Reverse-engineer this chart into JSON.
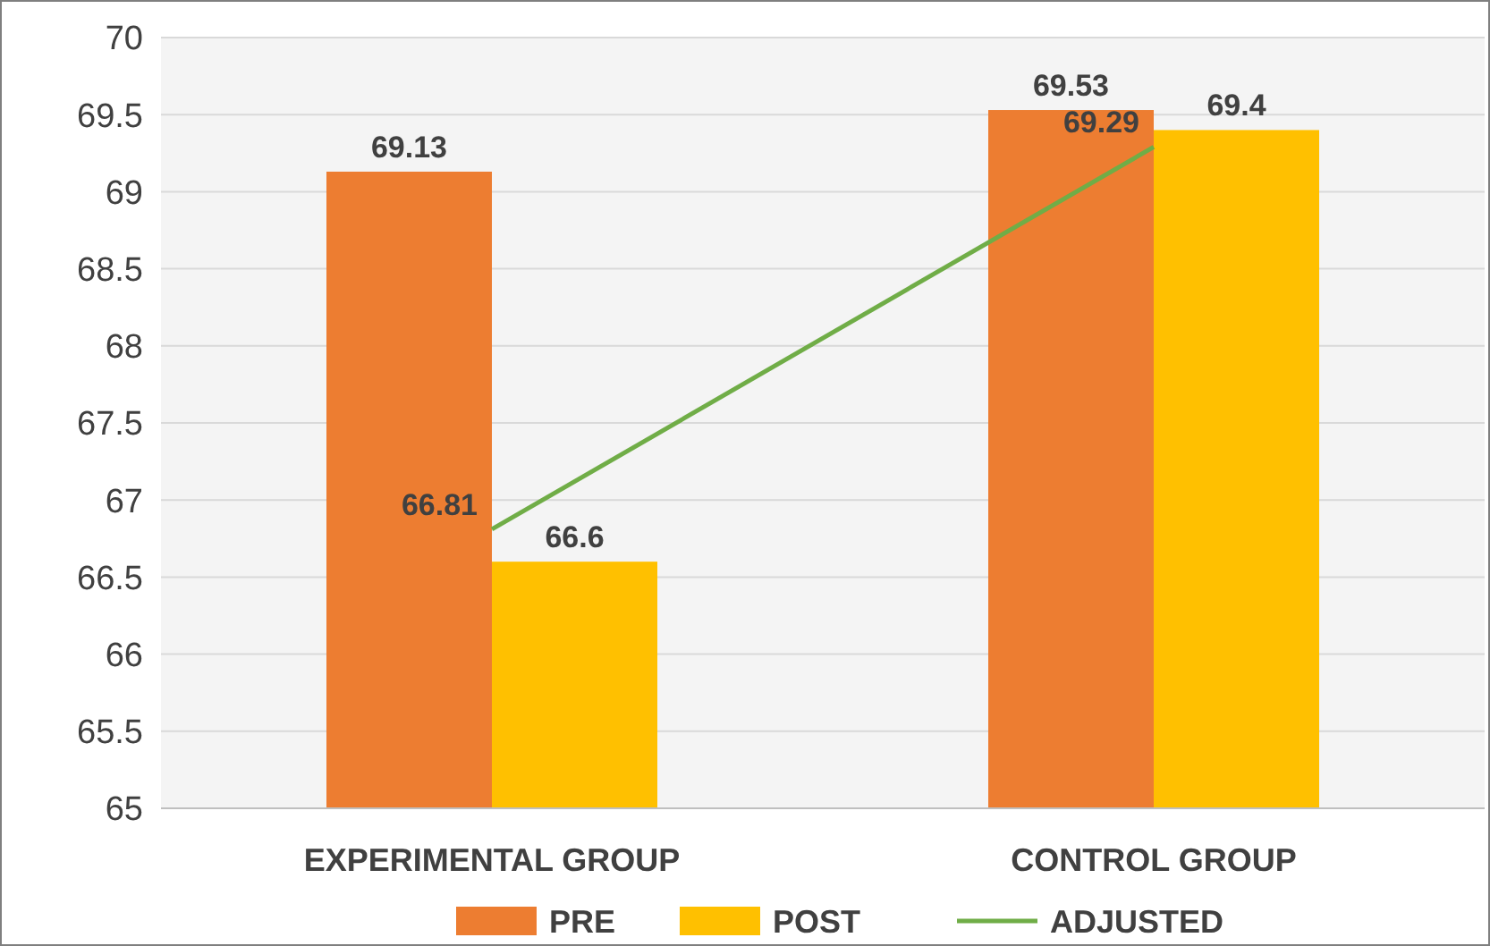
{
  "chart_data": {
    "type": "bar",
    "categories": [
      "EXPERIMENTAL GROUP",
      "CONTROL GROUP"
    ],
    "series": [
      {
        "name": "PRE",
        "color": "#ed7d31",
        "values": [
          69.13,
          69.53
        ]
      },
      {
        "name": "POST",
        "color": "#ffc000",
        "values": [
          66.6,
          69.4
        ]
      },
      {
        "name": "ADJUSTED",
        "type": "line",
        "color": "#70ad47",
        "values": [
          66.81,
          69.29
        ]
      }
    ],
    "ylim": [
      65,
      70
    ],
    "yticks": [
      65,
      65.5,
      66,
      66.5,
      67,
      67.5,
      68,
      68.5,
      69,
      69.5,
      70
    ],
    "grid": "y",
    "legend": "bottom",
    "data_labels": true,
    "marker": "none"
  }
}
